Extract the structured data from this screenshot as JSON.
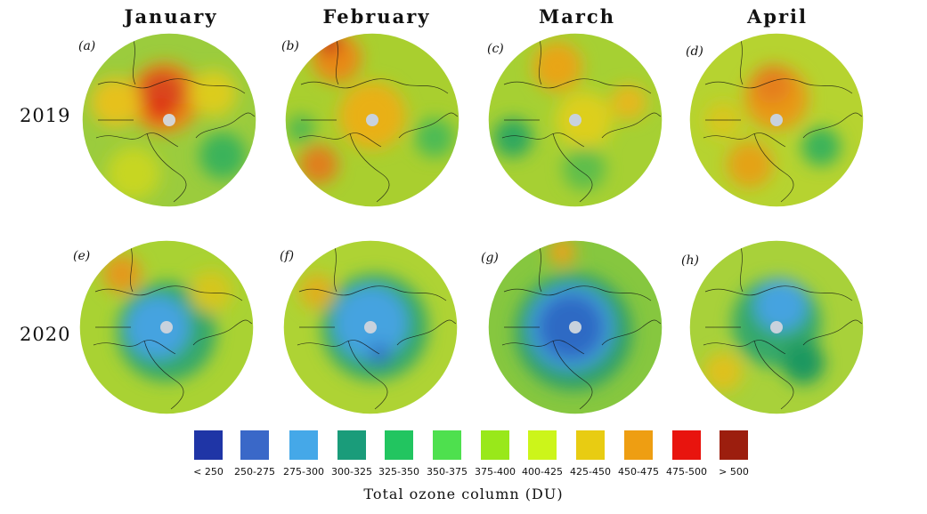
{
  "months": [
    "January",
    "February",
    "March",
    "April"
  ],
  "years": [
    "2019",
    "2020"
  ],
  "panels": [
    {
      "label": "(a)",
      "year": "2019",
      "month": "January",
      "background": "#9bcc3d",
      "blobs": [
        {
          "cx": 95,
          "cy": 75,
          "r": 40,
          "c": "#e88a17"
        },
        {
          "cx": 92,
          "cy": 70,
          "r": 26,
          "c": "#d94a1a"
        },
        {
          "cx": 90,
          "cy": 88,
          "r": 14,
          "c": "#e03319"
        },
        {
          "cx": 40,
          "cy": 80,
          "r": 28,
          "c": "#e6c11a"
        },
        {
          "cx": 150,
          "cy": 70,
          "r": 26,
          "c": "#dccc1c"
        },
        {
          "cx": 160,
          "cy": 140,
          "r": 26,
          "c": "#3bb35a"
        },
        {
          "cx": 60,
          "cy": 160,
          "r": 30,
          "c": "#c7d621"
        }
      ],
      "pole_color": "#d4d4d4"
    },
    {
      "label": "(b)",
      "year": "2019",
      "month": "February",
      "background": "#a9cf2f",
      "blobs": [
        {
          "cx": 60,
          "cy": 30,
          "r": 28,
          "c": "#e88a17"
        },
        {
          "cx": 52,
          "cy": 14,
          "r": 12,
          "c": "#c92016"
        },
        {
          "cx": 100,
          "cy": 95,
          "r": 38,
          "c": "#e9b018"
        },
        {
          "cx": 40,
          "cy": 150,
          "r": 22,
          "c": "#e07f1a"
        },
        {
          "cx": 170,
          "cy": 120,
          "r": 22,
          "c": "#4dbb55"
        },
        {
          "cx": 20,
          "cy": 110,
          "r": 16,
          "c": "#52b950"
        }
      ],
      "pole_color": "#c8d2dd"
    },
    {
      "label": "(c)",
      "year": "2019",
      "month": "March",
      "background": "#a6d033",
      "blobs": [
        {
          "cx": 80,
          "cy": 40,
          "r": 28,
          "c": "#e8a518"
        },
        {
          "cx": 110,
          "cy": 100,
          "r": 32,
          "c": "#ddcf1a"
        },
        {
          "cx": 30,
          "cy": 120,
          "r": 22,
          "c": "#2fa85e"
        },
        {
          "cx": 110,
          "cy": 155,
          "r": 24,
          "c": "#5ebe4b"
        },
        {
          "cx": 160,
          "cy": 80,
          "r": 20,
          "c": "#e6b81a"
        }
      ],
      "pole_color": "#c8d2dd"
    },
    {
      "label": "(d)",
      "year": "2019",
      "month": "April",
      "background": "#b6d330",
      "blobs": [
        {
          "cx": 100,
          "cy": 75,
          "r": 36,
          "c": "#e89a17"
        },
        {
          "cx": 95,
          "cy": 60,
          "r": 22,
          "c": "#e57f1a"
        },
        {
          "cx": 70,
          "cy": 150,
          "r": 26,
          "c": "#e4a318"
        },
        {
          "cx": 150,
          "cy": 130,
          "r": 22,
          "c": "#3bb35a"
        },
        {
          "cx": 40,
          "cy": 100,
          "r": 20,
          "c": "#d8c61d"
        }
      ],
      "pole_color": "#c8d2dd"
    },
    {
      "label": "(e)",
      "year": "2020",
      "month": "January",
      "background": "#a9d233",
      "blobs": [
        {
          "cx": 100,
          "cy": 105,
          "r": 56,
          "c": "#35a86a"
        },
        {
          "cx": 90,
          "cy": 100,
          "r": 36,
          "c": "#45a3e0"
        },
        {
          "cx": 50,
          "cy": 40,
          "r": 22,
          "c": "#e39a1a"
        },
        {
          "cx": 150,
          "cy": 60,
          "r": 24,
          "c": "#d5c61c"
        }
      ],
      "pole_color": "#c8d2dd"
    },
    {
      "label": "(f)",
      "year": "2020",
      "month": "February",
      "background": "#aed334",
      "blobs": [
        {
          "cx": 105,
          "cy": 100,
          "r": 60,
          "c": "#35a86a"
        },
        {
          "cx": 100,
          "cy": 95,
          "r": 42,
          "c": "#45a3e0"
        },
        {
          "cx": 110,
          "cy": 130,
          "r": 12,
          "c": "#3173c7"
        },
        {
          "cx": 40,
          "cy": 60,
          "r": 20,
          "c": "#dfb01a"
        }
      ],
      "pole_color": "#c8d2dd"
    },
    {
      "label": "(g)",
      "year": "2020",
      "month": "March",
      "background": "#86c73f",
      "blobs": [
        {
          "cx": 98,
          "cy": 105,
          "r": 66,
          "c": "#2f9f6a"
        },
        {
          "cx": 95,
          "cy": 100,
          "r": 48,
          "c": "#45a3e0"
        },
        {
          "cx": 95,
          "cy": 100,
          "r": 38,
          "c": "#2f6ac4"
        },
        {
          "cx": 85,
          "cy": 15,
          "r": 16,
          "c": "#e3a51a"
        }
      ],
      "pole_color": "#c8d2dd"
    },
    {
      "label": "(h)",
      "year": "2020",
      "month": "April",
      "background": "#a8d13a",
      "blobs": [
        {
          "cx": 100,
          "cy": 95,
          "r": 50,
          "c": "#35a86a"
        },
        {
          "cx": 105,
          "cy": 75,
          "r": 30,
          "c": "#45a3e0"
        },
        {
          "cx": 130,
          "cy": 140,
          "r": 24,
          "c": "#1e9860"
        },
        {
          "cx": 40,
          "cy": 150,
          "r": 22,
          "c": "#dfc11a"
        }
      ],
      "pole_color": "#c8d2dd"
    }
  ],
  "legend": {
    "title": "Total ozone column (DU)",
    "bins": [
      {
        "label": "< 250",
        "color": "#1f35a6"
      },
      {
        "label": "250-275",
        "color": "#3a68c8"
      },
      {
        "label": "275-300",
        "color": "#45a8e8"
      },
      {
        "label": "300-325",
        "color": "#1a9c7a"
      },
      {
        "label": "325-350",
        "color": "#22c560"
      },
      {
        "label": "350-375",
        "color": "#4ee04e"
      },
      {
        "label": "375-400",
        "color": "#99e81a"
      },
      {
        "label": "400-425",
        "color": "#ccf51a"
      },
      {
        "label": "425-450",
        "color": "#e8cc12"
      },
      {
        "label": "450-475",
        "color": "#ee9e12"
      },
      {
        "label": "475-500",
        "color": "#e8140e"
      },
      {
        "label": "> 500",
        "color": "#9c1e0e"
      }
    ]
  }
}
